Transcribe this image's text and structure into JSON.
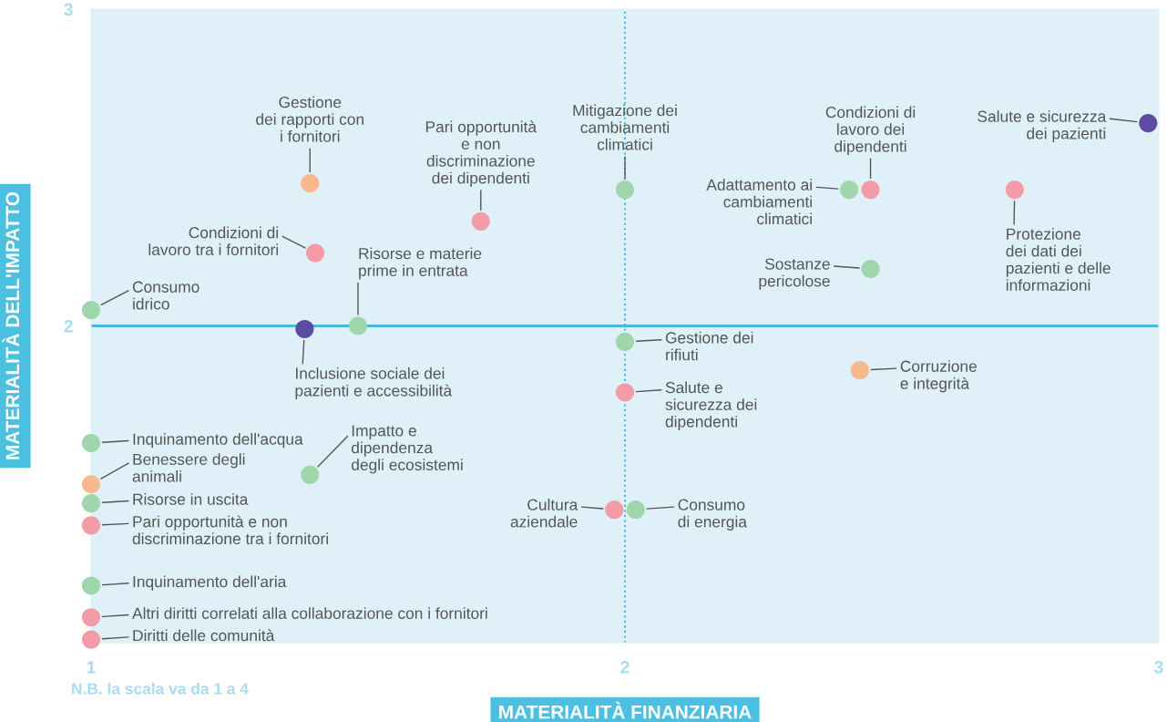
{
  "chart_data": {
    "type": "scatter",
    "xlabel": "MATERIALITÀ FINANZIARIA",
    "ylabel": "MATERIALITÀ DELL'IMPATTO",
    "xlim": [
      1,
      3
    ],
    "ylim": [
      1,
      3
    ],
    "xticks": [
      1,
      2,
      3
    ],
    "yticks": [
      2,
      3
    ],
    "marker": "circle",
    "grid": false,
    "series": [
      {
        "color": "#9fd6ab",
        "x": [
          2.0,
          2.42,
          1.5,
          2.46,
          1.0,
          2.0,
          1.0,
          1.41,
          1.0,
          2.02,
          1.0
        ],
        "values": [
          2.43,
          2.43,
          2.0,
          2.18,
          2.05,
          1.95,
          1.63,
          1.53,
          1.44,
          1.42,
          1.18
        ]
      },
      {
        "color": "#f39ca7",
        "x": [
          1.73,
          2.46,
          2.73,
          1.42,
          2.0,
          1.0,
          1.98,
          1.0,
          1.0
        ],
        "values": [
          2.33,
          2.43,
          2.43,
          2.23,
          1.79,
          1.37,
          1.42,
          1.08,
          1.01
        ]
      },
      {
        "color": "#f8ba8c",
        "x": [
          1.41,
          2.44,
          1.0
        ],
        "values": [
          2.45,
          1.86,
          1.5
        ]
      },
      {
        "color": "#5c4b9f",
        "x": [
          2.98,
          1.4
        ],
        "values": [
          2.64,
          1.99
        ]
      }
    ],
    "ref_lines": [
      {
        "axis": "y",
        "value": 2,
        "color": "#4ab8d8",
        "line_style": "solid"
      },
      {
        "axis": "x",
        "value": 2,
        "color": "#4ab8d8",
        "line_style": "dotted"
      }
    ],
    "annotations": [
      {
        "text": "Gestione\ndei rapporti con\ni fornitori",
        "x": 1.41,
        "y": 2.45
      },
      {
        "text": "Pari opportunità\ne non\ndiscriminazione\ndei dipendenti",
        "x": 1.73,
        "y": 2.33
      },
      {
        "text": "Mitigazione dei\ncambiamenti\nclimatici",
        "x": 2.0,
        "y": 2.43
      },
      {
        "text": "Condizioni di\nlavoro dei\ndipendenti",
        "x": 2.46,
        "y": 2.43
      },
      {
        "text": "Adattamento ai\ncambiamenti\nclimatici",
        "x": 2.42,
        "y": 2.43
      },
      {
        "text": "Salute e sicurezza\ndei pazienti",
        "x": 2.98,
        "y": 2.64
      },
      {
        "text": "Protezione\ndei dati dei\npazienti e delle\ninformazioni",
        "x": 2.73,
        "y": 2.43
      },
      {
        "text": "Condizioni di\nlavoro tra i fornitori",
        "x": 1.42,
        "y": 2.23
      },
      {
        "text": "Risorse e materie\nprime in entrata",
        "x": 1.5,
        "y": 2.0
      },
      {
        "text": "Sostanze\npericolose",
        "x": 2.46,
        "y": 2.18
      },
      {
        "text": "Consumo\nidrico",
        "x": 1.0,
        "y": 2.05
      },
      {
        "text": "Inclusione sociale dei\npazienti e accessibilità",
        "x": 1.4,
        "y": 1.99
      },
      {
        "text": "Gestione dei\nrifiuti",
        "x": 2.0,
        "y": 1.95
      },
      {
        "text": "Corruzione\ne integrità",
        "x": 2.44,
        "y": 1.86
      },
      {
        "text": "Salute e\nsicurezza dei\ndipendenti",
        "x": 2.0,
        "y": 1.79
      },
      {
        "text": "Inquinamento dell'acqua",
        "x": 1.0,
        "y": 1.63
      },
      {
        "text": "Benessere degli\nanimali",
        "x": 1.0,
        "y": 1.5
      },
      {
        "text": "Impatto e\ndipendenza\ndegli ecosistemi",
        "x": 1.41,
        "y": 1.53
      },
      {
        "text": "Risorse in uscita",
        "x": 1.0,
        "y": 1.44
      },
      {
        "text": "Pari opportunità e non\ndiscriminazione tra i fornitori",
        "x": 1.0,
        "y": 1.37
      },
      {
        "text": "Cultura\naziendale",
        "x": 1.98,
        "y": 1.42
      },
      {
        "text": "Consumo\ndi energia",
        "x": 2.02,
        "y": 1.42
      },
      {
        "text": "Inquinamento dell'aria",
        "x": 1.0,
        "y": 1.18
      },
      {
        "text": "Altri diritti correlati alla collaborazione con i fornitori",
        "x": 1.0,
        "y": 1.08
      },
      {
        "text": "Diritti delle comunità",
        "x": 1.0,
        "y": 1.01
      },
      "N.B. la scala va da 1 a 4"
    ]
  }
}
